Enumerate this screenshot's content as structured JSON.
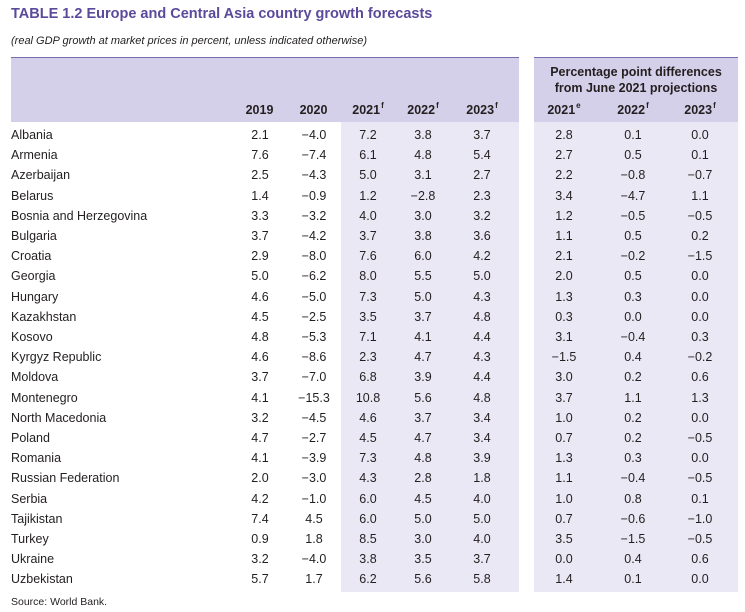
{
  "title": {
    "number": "TABLE 1.2",
    "text": "Europe and Central Asia country growth forecasts"
  },
  "subtitle": "(real GDP growth at market prices in percent, unless indicated otherwise)",
  "header": {
    "years": [
      {
        "label": "2019",
        "sup": ""
      },
      {
        "label": "2020",
        "sup": ""
      },
      {
        "label": "2021",
        "sup": "f"
      },
      {
        "label": "2022",
        "sup": "f"
      },
      {
        "label": "2023",
        "sup": "f"
      }
    ],
    "differences_title": [
      "Percentage point differences",
      "from June 2021 projections"
    ],
    "diff_years": [
      {
        "label": "2021",
        "sup": "e"
      },
      {
        "label": "2022",
        "sup": "f"
      },
      {
        "label": "2023",
        "sup": "f"
      }
    ]
  },
  "rows": [
    {
      "country": "Albania",
      "values": [
        "2.1",
        "−4.0",
        "7.2",
        "3.8",
        "3.7",
        "2.8",
        "0.1",
        "0.0"
      ]
    },
    {
      "country": "Armenia",
      "values": [
        "7.6",
        "−7.4",
        "6.1",
        "4.8",
        "5.4",
        "2.7",
        "0.5",
        "0.1"
      ]
    },
    {
      "country": "Azerbaijan",
      "values": [
        "2.5",
        "−4.3",
        "5.0",
        "3.1",
        "2.7",
        "2.2",
        "−0.8",
        "−0.7"
      ]
    },
    {
      "country": "Belarus",
      "values": [
        "1.4",
        "−0.9",
        "1.2",
        "−2.8",
        "2.3",
        "3.4",
        "−4.7",
        "1.1"
      ]
    },
    {
      "country": "Bosnia and Herzegovina",
      "values": [
        "3.3",
        "−3.2",
        "4.0",
        "3.0",
        "3.2",
        "1.2",
        "−0.5",
        "−0.5"
      ]
    },
    {
      "country": "Bulgaria",
      "values": [
        "3.7",
        "−4.2",
        "3.7",
        "3.8",
        "3.6",
        "1.1",
        "0.5",
        "0.2"
      ]
    },
    {
      "country": "Croatia",
      "values": [
        "2.9",
        "−8.0",
        "7.6",
        "6.0",
        "4.2",
        "2.1",
        "−0.2",
        "−1.5"
      ]
    },
    {
      "country": "Georgia",
      "values": [
        "5.0",
        "−6.2",
        "8.0",
        "5.5",
        "5.0",
        "2.0",
        "0.5",
        "0.0"
      ]
    },
    {
      "country": "Hungary",
      "values": [
        "4.6",
        "−5.0",
        "7.3",
        "5.0",
        "4.3",
        "1.3",
        "0.3",
        "0.0"
      ]
    },
    {
      "country": "Kazakhstan",
      "values": [
        "4.5",
        "−2.5",
        "3.5",
        "3.7",
        "4.8",
        "0.3",
        "0.0",
        "0.0"
      ]
    },
    {
      "country": "Kosovo",
      "values": [
        "4.8",
        "−5.3",
        "7.1",
        "4.1",
        "4.4",
        "3.1",
        "−0.4",
        "0.3"
      ]
    },
    {
      "country": "Kyrgyz Republic",
      "values": [
        "4.6",
        "−8.6",
        "2.3",
        "4.7",
        "4.3",
        "−1.5",
        "0.4",
        "−0.2"
      ]
    },
    {
      "country": "Moldova",
      "values": [
        "3.7",
        "−7.0",
        "6.8",
        "3.9",
        "4.4",
        "3.0",
        "0.2",
        "0.6"
      ]
    },
    {
      "country": "Montenegro",
      "values": [
        "4.1",
        "−15.3",
        "10.8",
        "5.6",
        "4.8",
        "3.7",
        "1.1",
        "1.3"
      ]
    },
    {
      "country": "North Macedonia",
      "values": [
        "3.2",
        "−4.5",
        "4.6",
        "3.7",
        "3.4",
        "1.0",
        "0.2",
        "0.0"
      ]
    },
    {
      "country": "Poland",
      "values": [
        "4.7",
        "−2.7",
        "4.5",
        "4.7",
        "3.4",
        "0.7",
        "0.2",
        "−0.5"
      ]
    },
    {
      "country": "Romania",
      "values": [
        "4.1",
        "−3.9",
        "7.3",
        "4.8",
        "3.9",
        "1.3",
        "0.3",
        "0.0"
      ]
    },
    {
      "country": "Russian Federation",
      "values": [
        "2.0",
        "−3.0",
        "4.3",
        "2.8",
        "1.8",
        "1.1",
        "−0.4",
        "−0.5"
      ]
    },
    {
      "country": "Serbia",
      "values": [
        "4.2",
        "−1.0",
        "6.0",
        "4.5",
        "4.0",
        "1.0",
        "0.8",
        "0.1"
      ]
    },
    {
      "country": "Tajikistan",
      "values": [
        "7.4",
        "4.5",
        "6.0",
        "5.0",
        "5.0",
        "0.7",
        "−0.6",
        "−1.0"
      ]
    },
    {
      "country": "Turkey",
      "values": [
        "0.9",
        "1.8",
        "8.5",
        "3.0",
        "4.0",
        "3.5",
        "−1.5",
        "−0.5"
      ]
    },
    {
      "country": "Ukraine",
      "values": [
        "3.2",
        "−4.0",
        "3.8",
        "3.5",
        "3.7",
        "0.0",
        "0.4",
        "0.6"
      ]
    },
    {
      "country": "Uzbekistan",
      "values": [
        "5.7",
        "1.7",
        "6.2",
        "5.6",
        "5.8",
        "1.4",
        "0.1",
        "0.0"
      ]
    }
  ],
  "source": "Source: World Bank."
}
